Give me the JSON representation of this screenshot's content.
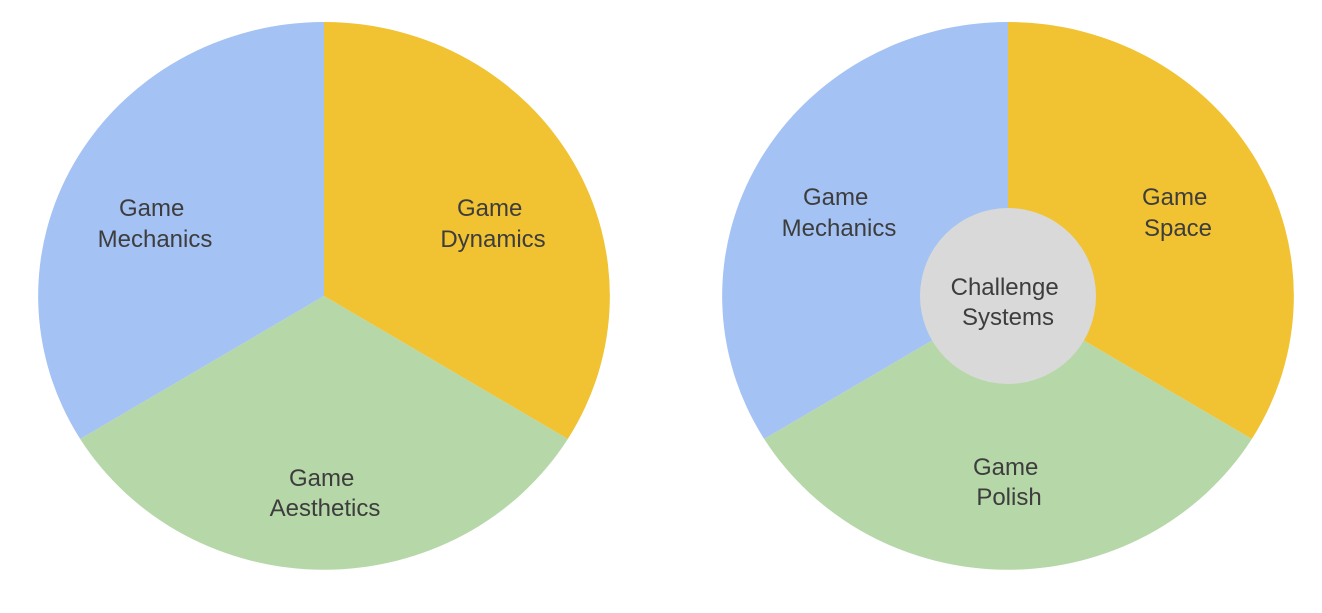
{
  "colors": {
    "blue": "#a4c2f4",
    "yellow": "#f1c232",
    "green": "#b6d7a8",
    "gray": "#d9d9d9",
    "text": "#3d3d3d"
  },
  "left_diagram": {
    "segments": [
      {
        "id": "mechanics",
        "color_key": "blue",
        "line1": "Game",
        "line2": "Mechanics"
      },
      {
        "id": "dynamics",
        "color_key": "yellow",
        "line1": "Game",
        "line2": "Dynamics"
      },
      {
        "id": "aesthetics",
        "color_key": "green",
        "line1": "Game",
        "line2": "Aesthetics"
      }
    ]
  },
  "right_diagram": {
    "segments": [
      {
        "id": "mechanics",
        "color_key": "blue",
        "line1": "Game",
        "line2": "Mechanics"
      },
      {
        "id": "space",
        "color_key": "yellow",
        "line1": "Game",
        "line2": "Space"
      },
      {
        "id": "polish",
        "color_key": "green",
        "line1": "Game",
        "line2": "Polish"
      }
    ],
    "center": {
      "color_key": "gray",
      "line1": "Challenge",
      "line2": "Systems"
    }
  }
}
